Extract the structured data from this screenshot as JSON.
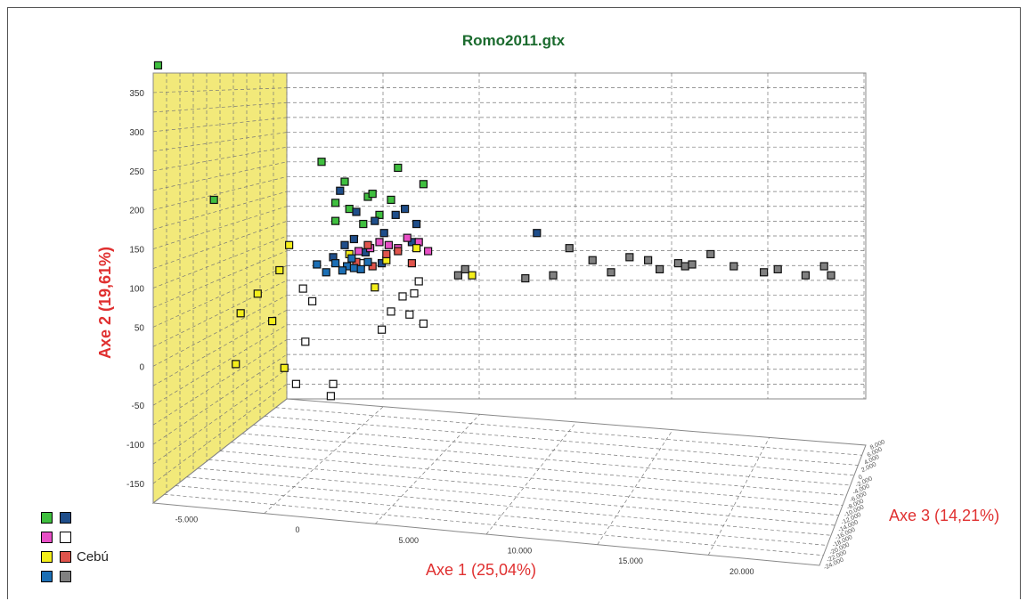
{
  "chart_data": {
    "type": "scatter",
    "title": "Romo2011.gtx",
    "xlabel": "Axe 1 (25,04%)",
    "ylabel": "Axe 2 (19,61%)",
    "zlabel": "Axe 3 (14,21%)",
    "x_ticks": [
      "-5.000",
      "0",
      "5.000",
      "10.000",
      "15.000",
      "20.000"
    ],
    "y_ticks": [
      "350",
      "300",
      "250",
      "200",
      "150",
      "100",
      "50",
      "0",
      "-50",
      "-100",
      "-150"
    ],
    "z_ticks": [
      "8.000",
      "6.000",
      "4.000",
      "2.000",
      "0",
      "-2.000",
      "-4.000",
      "-6.000",
      "-8.000",
      "-10.000",
      "-12.000",
      "-14.000",
      "-16.000",
      "-18.000",
      "-20.000",
      "-22.000",
      "-24.000"
    ],
    "grid": true,
    "wall_color": "#f2e97a",
    "legend": {
      "position": "bottom-left",
      "entries": [
        {
          "color": "#3fbf3f",
          "label": ""
        },
        {
          "color": "#1f4e8a",
          "label": ""
        },
        {
          "color": "#e84fc6",
          "label": ""
        },
        {
          "color": "#ffffff",
          "label": ""
        },
        {
          "color": "#f4ee1a",
          "label": ""
        },
        {
          "color": "#e0544c",
          "label": "Cebú"
        },
        {
          "color": "#1c6fb5",
          "label": ""
        },
        {
          "color": "#808080",
          "label": ""
        }
      ]
    },
    "series": [
      {
        "color": "#3fbf3f",
        "points": [
          [
            -6800,
            362
          ],
          [
            0.8,
            228
          ],
          [
            -4500,
            190
          ],
          [
            3300,
            218
          ],
          [
            4400,
            191
          ],
          [
            600,
            160
          ],
          [
            1000,
            195
          ],
          [
            2000,
            170
          ],
          [
            2500,
            140
          ],
          [
            1800,
            125
          ],
          [
            1200,
            150
          ],
          [
            3000,
            165
          ],
          [
            2200,
            175
          ],
          [
            600,
            130
          ]
        ]
      },
      {
        "color": "#1f4e8a",
        "points": [
          [
            800,
            180
          ],
          [
            1500,
            145
          ],
          [
            2300,
            130
          ],
          [
            3200,
            140
          ],
          [
            3600,
            150
          ],
          [
            4100,
            125
          ],
          [
            2700,
            110
          ],
          [
            3900,
            95
          ],
          [
            1400,
            100
          ],
          [
            500,
            70
          ],
          [
            1900,
            78
          ],
          [
            9300,
            110
          ],
          [
            1000,
            90
          ],
          [
            2600,
            60
          ]
        ]
      },
      {
        "color": "#e84fc6",
        "points": [
          [
            2500,
            95
          ],
          [
            2900,
            90
          ],
          [
            3700,
            102
          ],
          [
            4200,
            95
          ],
          [
            2100,
            85
          ],
          [
            1600,
            80
          ],
          [
            3300,
            85
          ],
          [
            4600,
            80
          ]
        ]
      },
      {
        "color": "#ffffff",
        "points": [
          [
            -800,
            18
          ],
          [
            -400,
            -3
          ],
          [
            3000,
            -20
          ],
          [
            3500,
            5
          ],
          [
            4000,
            10
          ],
          [
            3800,
            -25
          ],
          [
            4400,
            -40
          ],
          [
            4200,
            30
          ],
          [
            -700,
            -70
          ],
          [
            -1100,
            -140
          ],
          [
            400,
            -160
          ],
          [
            500,
            -140
          ],
          [
            1700,
            60
          ],
          [
            2600,
            -50
          ]
        ]
      },
      {
        "color": "#f4ee1a",
        "points": [
          [
            -1800,
            100
          ],
          [
            -1400,
            90
          ],
          [
            -2700,
            70
          ],
          [
            -3400,
            45
          ],
          [
            -2100,
            35
          ],
          [
            -3600,
            -20
          ],
          [
            -1600,
            -25
          ],
          [
            1200,
            75
          ],
          [
            2800,
            65
          ],
          [
            4100,
            85
          ],
          [
            6500,
            40
          ],
          [
            2300,
            20
          ]
        ]
      },
      {
        "color": "#e0544c",
        "points": [
          [
            2000,
            90
          ],
          [
            2800,
            75
          ],
          [
            3300,
            80
          ],
          [
            1500,
            62
          ],
          [
            3900,
            60
          ],
          [
            2200,
            55
          ]
        ]
      },
      {
        "color": "#1c6fb5",
        "points": [
          [
            600,
            60
          ],
          [
            1100,
            55
          ],
          [
            900,
            48
          ],
          [
            1400,
            52
          ],
          [
            1700,
            50
          ],
          [
            -200,
            58
          ],
          [
            200,
            45
          ],
          [
            2000,
            62
          ],
          [
            1300,
            68
          ]
        ]
      },
      {
        "color": "#808080",
        "points": [
          [
            5900,
            40
          ],
          [
            6200,
            50
          ],
          [
            8800,
            35
          ],
          [
            10000,
            40
          ],
          [
            10700,
            85
          ],
          [
            11700,
            65
          ],
          [
            12500,
            45
          ],
          [
            13300,
            70
          ],
          [
            14100,
            65
          ],
          [
            14600,
            50
          ],
          [
            15400,
            60
          ],
          [
            15700,
            55
          ],
          [
            16000,
            58
          ],
          [
            16800,
            75
          ],
          [
            17800,
            55
          ],
          [
            19100,
            45
          ],
          [
            19700,
            50
          ],
          [
            20900,
            40
          ],
          [
            21700,
            55
          ],
          [
            22000,
            40
          ]
        ]
      }
    ]
  }
}
